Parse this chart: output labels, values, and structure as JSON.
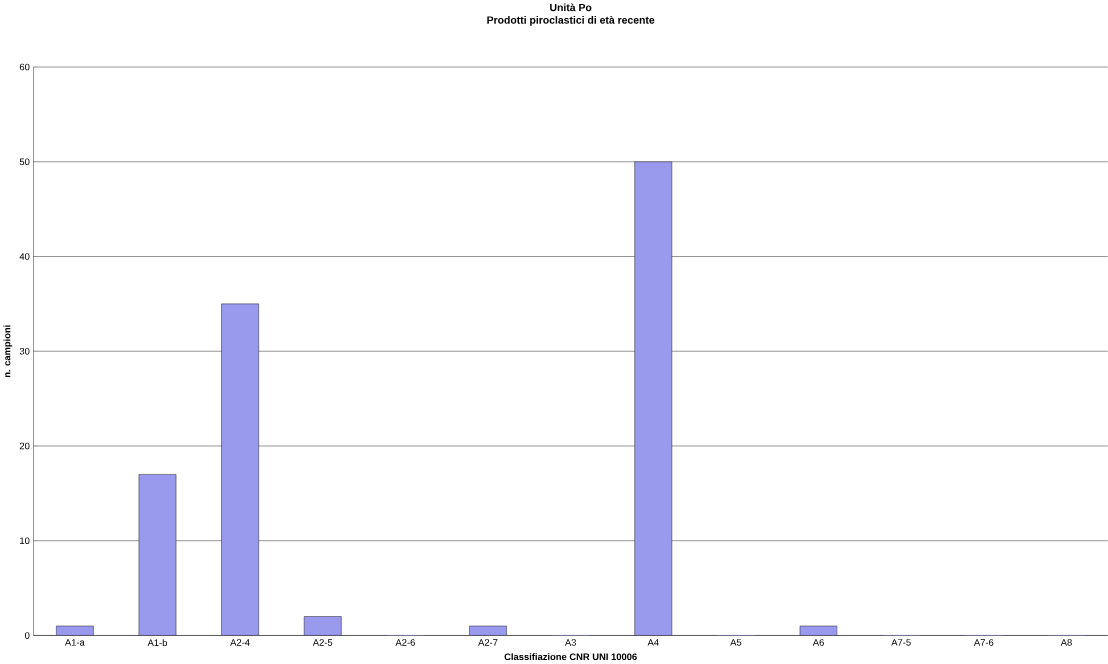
{
  "chart_data": {
    "type": "bar",
    "title": "Unità Po",
    "subtitle": "Prodotti piroclastici di età recente",
    "xlabel": "Classifiazione CNR UNI 10006",
    "ylabel": "n. campioni",
    "categories": [
      "A1-a",
      "A1-b",
      "A2-4",
      "A2-5",
      "A2-6",
      "A2-7",
      "A3",
      "A4",
      "A5",
      "A6",
      "A7-5",
      "A7-6",
      "A8"
    ],
    "values": [
      1,
      17,
      35,
      2,
      0,
      1,
      0,
      50,
      0,
      1,
      0,
      0,
      0
    ],
    "color": "#9999ee",
    "ylim": [
      0,
      60
    ],
    "yticks": [
      0,
      10,
      20,
      30,
      40,
      50,
      60
    ],
    "grid": "y"
  }
}
